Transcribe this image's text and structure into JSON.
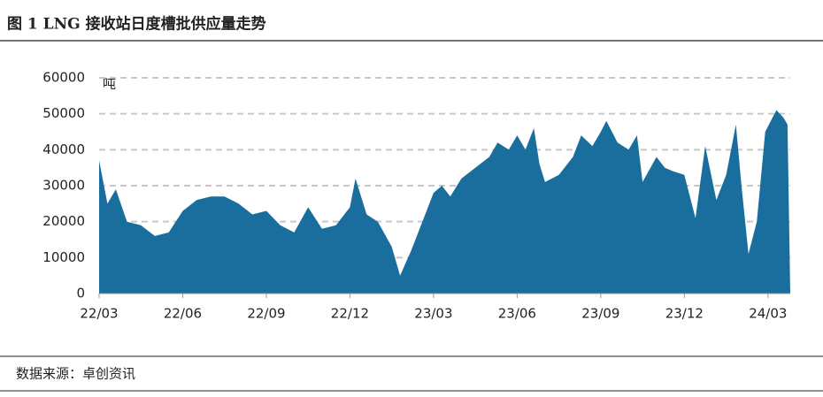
{
  "chart_data": {
    "type": "area",
    "title": "图 1 LNG 接收站日度槽批供应量走势",
    "y_unit": "吨",
    "source": "数据来源：卓创资讯",
    "color": "#1a6e9e",
    "x": [
      0,
      0.3,
      0.6,
      1.0,
      1.5,
      2.0,
      2.5,
      3.0,
      3.5,
      4.0,
      4.5,
      5.0,
      5.5,
      6.0,
      6.5,
      7.0,
      7.5,
      8.0,
      8.5,
      9.0,
      9.2,
      9.6,
      10.0,
      10.5,
      10.8,
      11.2,
      11.6,
      12.0,
      12.3,
      12.6,
      13.0,
      13.5,
      14.0,
      14.3,
      14.7,
      15.0,
      15.3,
      15.6,
      15.8,
      16.0,
      16.5,
      17.0,
      17.3,
      17.7,
      18.0,
      18.2,
      18.6,
      19.0,
      19.3,
      19.5,
      20.0,
      20.3,
      20.6,
      21.0,
      21.4,
      21.75,
      22.15,
      22.5,
      22.85,
      23.05,
      23.3,
      23.6,
      23.9,
      24.3,
      24.55,
      24.7,
      24.8
    ],
    "values": [
      37000,
      25000,
      29000,
      20000,
      19000,
      16000,
      17000,
      23000,
      26000,
      27000,
      27000,
      25000,
      22000,
      23000,
      19000,
      17000,
      24000,
      18000,
      19000,
      24000,
      32000,
      22000,
      20000,
      13000,
      5000,
      12000,
      20000,
      28000,
      30000,
      27000,
      32000,
      35000,
      38000,
      42000,
      40000,
      44000,
      40000,
      46000,
      36000,
      31000,
      33000,
      38000,
      44000,
      41000,
      45000,
      48000,
      42000,
      40000,
      44000,
      31000,
      38000,
      35000,
      34000,
      33000,
      21000,
      41000,
      26000,
      33000,
      47000,
      30000,
      11000,
      20000,
      45000,
      51000,
      49000,
      47000,
      0
    ],
    "xlim": [
      0,
      24.8
    ],
    "xticks": [
      {
        "value": 0,
        "label": "22/03"
      },
      {
        "value": 3,
        "label": "22/06"
      },
      {
        "value": 6,
        "label": "22/09"
      },
      {
        "value": 9,
        "label": "22/12"
      },
      {
        "value": 12,
        "label": "23/03"
      },
      {
        "value": 15,
        "label": "23/06"
      },
      {
        "value": 18,
        "label": "23/09"
      },
      {
        "value": 21,
        "label": "23/12"
      },
      {
        "value": 24,
        "label": "24/03"
      }
    ],
    "ylim": [
      0,
      60000
    ],
    "yticks": [
      0,
      10000,
      20000,
      30000,
      40000,
      50000,
      60000
    ],
    "grid": true
  }
}
